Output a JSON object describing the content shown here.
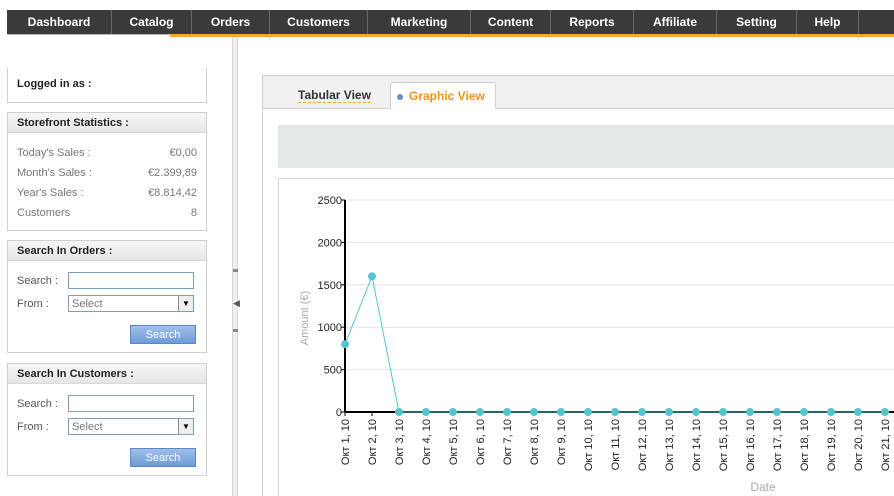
{
  "nav": {
    "items": [
      "Dashboard",
      "Catalog",
      "Orders",
      "Customers",
      "Marketing",
      "Content",
      "Reports",
      "Affiliate",
      "Setting",
      "Help"
    ]
  },
  "sidebar": {
    "logged_in_label": "Logged in as :",
    "stats": {
      "title": "Storefront Statistics :",
      "rows": [
        {
          "label": "Today's Sales :",
          "value": "€0,00"
        },
        {
          "label": "Month's Sales :",
          "value": "€2.399,89"
        },
        {
          "label": "Year's Sales :",
          "value": "€8.814,42"
        },
        {
          "label": "Customers",
          "value": "8"
        }
      ]
    },
    "search_orders": {
      "title": "Search In Orders :",
      "search_label": "Search :",
      "search_value": "",
      "from_label": "From :",
      "from_value": "Select",
      "button": "Search"
    },
    "search_customers": {
      "title": "Search In Customers :",
      "search_label": "Search :",
      "search_value": "",
      "from_label": "From :",
      "from_value": "Select",
      "button": "Search"
    }
  },
  "tabs": {
    "tabular": "Tabular View",
    "graphic": "Graphic View"
  },
  "chart_data": {
    "type": "line",
    "xlabel": "Date",
    "ylabel": "Amount (€)",
    "ylim": [
      0,
      2500
    ],
    "yticks": [
      0,
      500,
      1000,
      1500,
      2000,
      2500
    ],
    "grid": true,
    "color": "#56c4cf",
    "categories": [
      "Окт 1, 10",
      "Окт 2, 10",
      "Окт 3, 10",
      "Окт 4, 10",
      "Окт 5, 10",
      "Окт 6, 10",
      "Окт 7, 10",
      "Окт 8, 10",
      "Окт 9, 10",
      "Окт 10, 10",
      "Окт 11, 10",
      "Окт 12, 10",
      "Окт 13, 10",
      "Окт 14, 10",
      "Окт 15, 10",
      "Окт 16, 10",
      "Окт 17, 10",
      "Окт 18, 10",
      "Окт 19, 10",
      "Окт 20, 10",
      "Окт 21, 10"
    ],
    "values": [
      800,
      1600,
      0,
      0,
      0,
      0,
      0,
      0,
      0,
      0,
      0,
      0,
      0,
      0,
      0,
      0,
      0,
      0,
      0,
      0,
      0
    ]
  }
}
